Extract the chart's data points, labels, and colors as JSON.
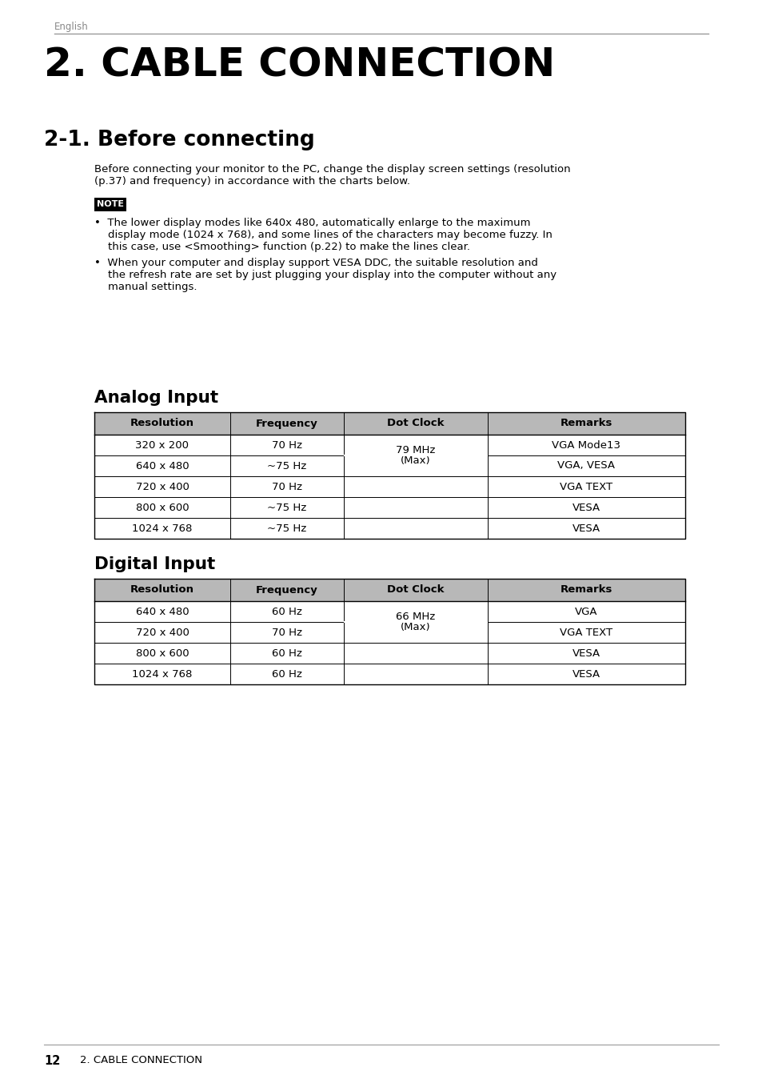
{
  "page_header": "English",
  "main_title": "2. CABLE CONNECTION",
  "section_title": "2-1. Before connecting",
  "intro_line1": "Before connecting your monitor to the PC, change the display screen settings (resolution",
  "intro_line2": "(p.37) and frequency) in accordance with the charts below.",
  "note_label": "NOTE",
  "bullet1_lines": [
    "•  The lower display modes like 640x 480, automatically enlarge to the maximum",
    "    display mode (1024 x 768), and some lines of the characters may become fuzzy. In",
    "    this case, use <Smoothing> function (p.22) to make the lines clear."
  ],
  "bullet2_lines": [
    "•  When your computer and display support VESA DDC, the suitable resolution and",
    "    the refresh rate are set by just plugging your display into the computer without any",
    "    manual settings."
  ],
  "analog_title": "Analog Input",
  "analog_headers": [
    "Resolution",
    "Frequency",
    "Dot Clock",
    "Remarks"
  ],
  "analog_rows": [
    [
      "320 x 200",
      "70 Hz",
      "VGA Mode13"
    ],
    [
      "640 x 480",
      "~75 Hz",
      "VGA, VESA"
    ],
    [
      "720 x 400",
      "70 Hz",
      "VGA TEXT"
    ],
    [
      "800 x 600",
      "~75 Hz",
      "VESA"
    ],
    [
      "1024 x 768",
      "~75 Hz",
      "VESA"
    ]
  ],
  "analog_dot_clock": "79 MHz\n(Max)",
  "analog_dot_merge_rows": [
    0,
    1
  ],
  "digital_title": "Digital Input",
  "digital_headers": [
    "Resolution",
    "Frequency",
    "Dot Clock",
    "Remarks"
  ],
  "digital_rows": [
    [
      "640 x 480",
      "60 Hz",
      "VGA"
    ],
    [
      "720 x 400",
      "70 Hz",
      "VGA TEXT"
    ],
    [
      "800 x 600",
      "60 Hz",
      "VESA"
    ],
    [
      "1024 x 768",
      "60 Hz",
      "VESA"
    ]
  ],
  "digital_dot_clock": "66 MHz\n(Max)",
  "digital_dot_merge_rows": [
    0,
    1
  ],
  "footer_num": "12",
  "footer_label": "2. CABLE CONNECTION",
  "bg_color": "#ffffff",
  "header_bg": "#b8b8b8",
  "text_color": "#000000",
  "gray_color": "#888888",
  "note_bg": "#000000",
  "note_text_color": "#ffffff"
}
